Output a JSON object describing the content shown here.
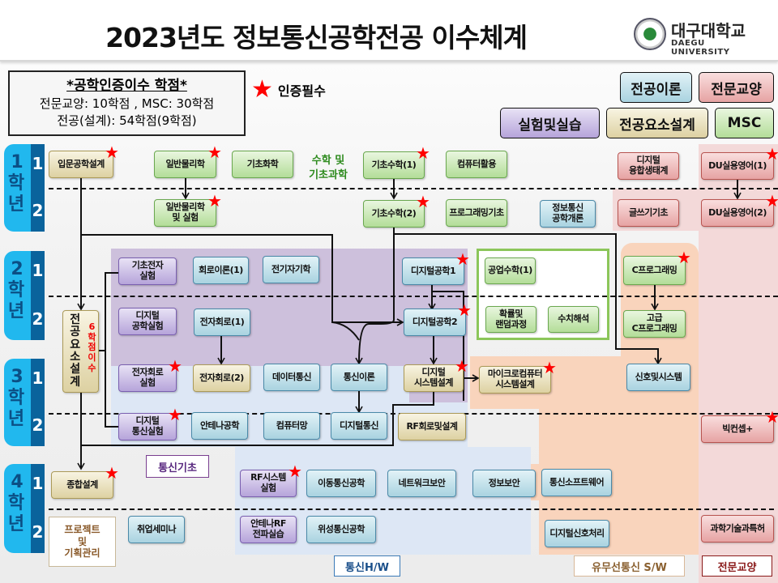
{
  "title": "2023년도 정보통신공학전공 이수체계",
  "logo": {
    "name_kr": "대구대학교",
    "name_en": "DAEGU UNIVERSITY"
  },
  "credits": {
    "heading": "*공학인증이수 학점*",
    "line1": "전문교양: 10학점 , MSC: 30학점",
    "line2": "전공(설계): 54학점(9학점)"
  },
  "required_legend": "인증필수",
  "legend": {
    "theory": "전공이론",
    "liberal": "전문교양",
    "lab": "실험및실습",
    "design": "전공요소설계",
    "msc": "MSC"
  },
  "colors": {
    "theory": "#a9d3e0",
    "liberal": "#e6a3a3",
    "lab": "#b6a4da",
    "design": "#ddd1a2",
    "msc": "#b3dd98",
    "required_star": "#ff0000",
    "year_label": "#21b8ee"
  },
  "years": [
    {
      "num": "1",
      "label": "학년",
      "sems": [
        "1",
        "2"
      ]
    },
    {
      "num": "2",
      "label": "학년",
      "sems": [
        "1",
        "2"
      ]
    },
    {
      "num": "3",
      "label": "학년",
      "sems": [
        "1",
        "2"
      ]
    },
    {
      "num": "4",
      "label": "학년",
      "sems": [
        "1",
        "2"
      ]
    }
  ],
  "group_labels": {
    "math_science": "수학 및\n기초과학",
    "comm_basics": "통신기초",
    "comm_hw": "통신H/W",
    "sw": "유무선통신 S/W",
    "liberal": "전문교양",
    "project": "프로젝트\n및\n기획관리",
    "design_credit": "6\n학\n점\n이\n수"
  },
  "courses": {
    "intro_design": {
      "name": "입문공학설계",
      "category": "design",
      "required": true
    },
    "physics": {
      "name": "일반물리학",
      "category": "msc",
      "required": true
    },
    "chemistry": {
      "name": "기초화학",
      "category": "msc",
      "required": false
    },
    "math1": {
      "name": "기초수학(1)",
      "category": "msc",
      "required": true
    },
    "computer_use": {
      "name": "컴퓨터활용",
      "category": "msc",
      "required": false
    },
    "digital_eco": {
      "name": "디지털\n융합생태계",
      "category": "liberal",
      "required": false
    },
    "du_eng1": {
      "name": "DU실용영어(1)",
      "category": "liberal",
      "required": true
    },
    "physics_lab": {
      "name": "일반물리학\n및 실험",
      "category": "msc",
      "required": true
    },
    "math2": {
      "name": "기초수학(2)",
      "category": "msc",
      "required": true
    },
    "prog_basic": {
      "name": "프로그래밍기초",
      "category": "msc",
      "required": false
    },
    "ict_intro": {
      "name": "정보통신\n공학개론",
      "category": "theory",
      "required": false
    },
    "writing": {
      "name": "글쓰기기초",
      "category": "liberal",
      "required": false
    },
    "du_eng2": {
      "name": "DU실용영어(2)",
      "category": "liberal",
      "required": true
    },
    "elec_lab": {
      "name": "기초전자\n실험",
      "category": "lab",
      "required": false
    },
    "circuit1": {
      "name": "회로이론(1)",
      "category": "theory",
      "required": false
    },
    "em": {
      "name": "전기자기학",
      "category": "theory",
      "required": false
    },
    "digital1": {
      "name": "디지털공학1",
      "category": "theory",
      "required": true
    },
    "eng_math1": {
      "name": "공업수학(1)",
      "category": "msc",
      "required": false
    },
    "c_prog": {
      "name": "C프로그래밍",
      "category": "msc",
      "required": true
    },
    "major_design": {
      "name": "전\n공\n요\n소\n설\n계",
      "category": "design",
      "required": false
    },
    "digital_lab": {
      "name": "디지털\n공학실험",
      "category": "lab",
      "required": false
    },
    "electronic1": {
      "name": "전자회로(1)",
      "category": "theory",
      "required": false
    },
    "digital2": {
      "name": "디지털공학2",
      "category": "theory",
      "required": true
    },
    "probability": {
      "name": "확률및\n랜덤과정",
      "category": "msc",
      "required": false
    },
    "numerical": {
      "name": "수치해석",
      "category": "msc",
      "required": false
    },
    "adv_c": {
      "name": "고급\nC프로그래밍",
      "category": "msc",
      "required": false
    },
    "electronic_lab": {
      "name": "전자회로\n실험",
      "category": "lab",
      "required": true
    },
    "electronic2": {
      "name": "전자회로(2)",
      "category": "design",
      "required": false
    },
    "data_comm": {
      "name": "데이터통신",
      "category": "theory",
      "required": false
    },
    "comm_theory": {
      "name": "통신이론",
      "category": "theory",
      "required": false
    },
    "digital_sys": {
      "name": "디지털\n시스템설계",
      "category": "design",
      "required": true
    },
    "micro": {
      "name": "마이크로컴퓨터\n시스템설계",
      "category": "design",
      "required": true
    },
    "signals": {
      "name": "신호및시스템",
      "category": "theory",
      "required": false
    },
    "dcomm_lab": {
      "name": "디지털\n통신실험",
      "category": "lab",
      "required": true
    },
    "antenna": {
      "name": "안테나공학",
      "category": "theory",
      "required": false
    },
    "network": {
      "name": "컴퓨터망",
      "category": "theory",
      "required": false
    },
    "digital_comm": {
      "name": "디지털통신",
      "category": "theory",
      "required": false
    },
    "rf_circuit": {
      "name": "RF회로및설계",
      "category": "design",
      "required": false
    },
    "big_concept": {
      "name": "빅컨셉+",
      "category": "liberal",
      "required": true
    },
    "capstone": {
      "name": "종합설계",
      "category": "design",
      "required": true
    },
    "rf_lab": {
      "name": "RF시스템\n실험",
      "category": "lab",
      "required": true
    },
    "mobile": {
      "name": "이동통신공학",
      "category": "theory",
      "required": false
    },
    "net_security": {
      "name": "네트워크보안",
      "category": "theory",
      "required": false
    },
    "info_security": {
      "name": "정보보안",
      "category": "theory",
      "required": false
    },
    "comm_sw": {
      "name": "통신소프트웨어",
      "category": "theory",
      "required": false
    },
    "job_seminar": {
      "name": "취업세미나",
      "category": "theory",
      "required": false
    },
    "antenna_lab": {
      "name": "안테나RF\n전파실습",
      "category": "lab",
      "required": false
    },
    "satellite": {
      "name": "위성통신공학",
      "category": "theory",
      "required": false
    },
    "dsp": {
      "name": "디지털신호처리",
      "category": "theory",
      "required": false
    },
    "patent": {
      "name": "과학기술과특허",
      "category": "liberal",
      "required": false
    }
  }
}
